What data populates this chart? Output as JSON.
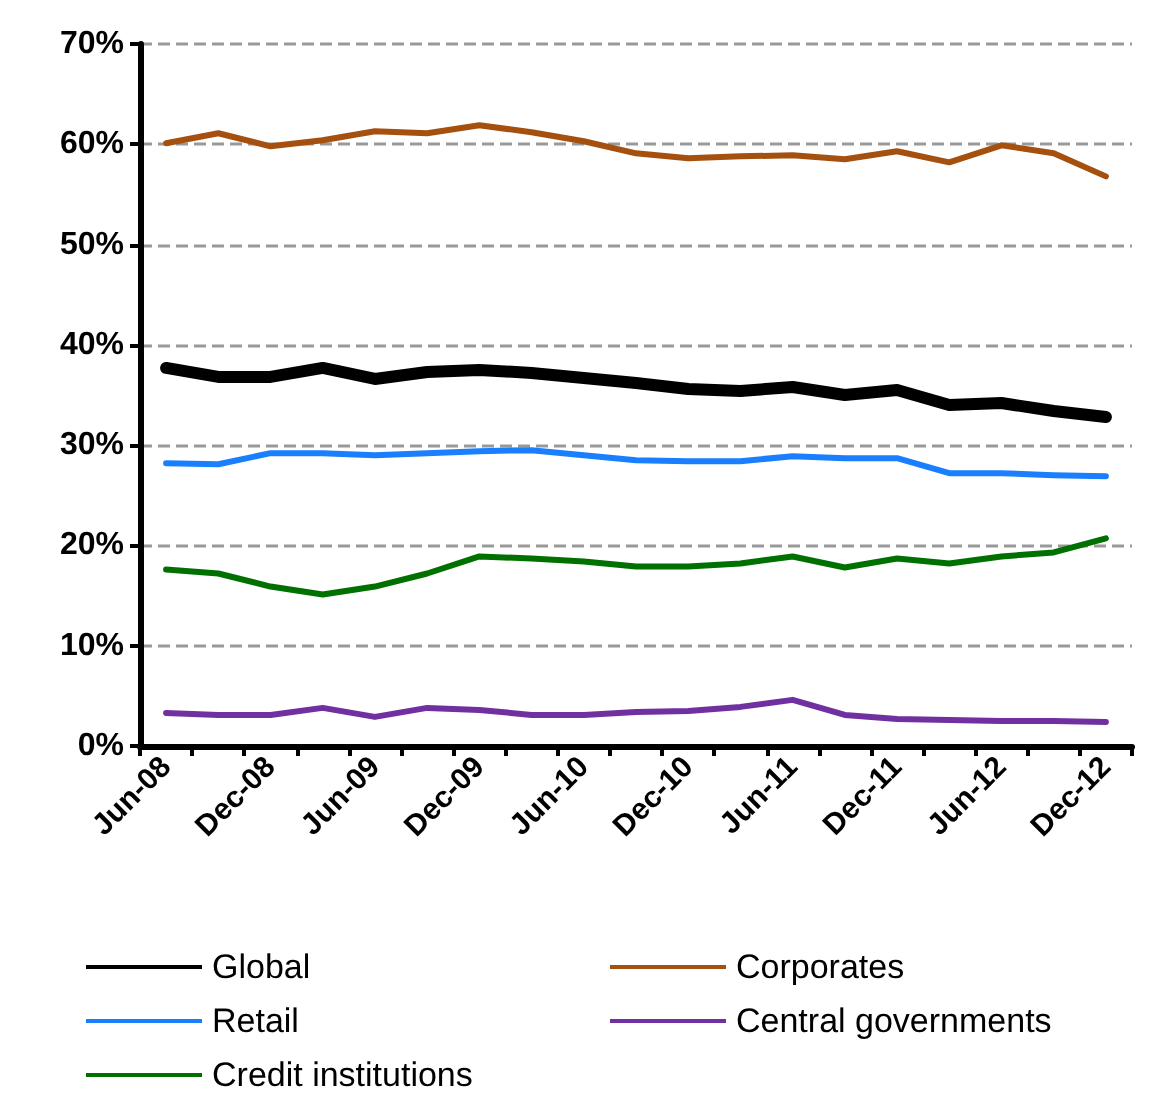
{
  "chart_data": {
    "type": "line",
    "categories": [
      "Jun-08",
      null,
      "Dec-08",
      null,
      "Jun-09",
      null,
      "Dec-09",
      null,
      "Jun-10",
      null,
      "Dec-10",
      null,
      "Jun-11",
      null,
      "Dec-11",
      null,
      "Jun-12",
      null,
      "Dec-12"
    ],
    "series": [
      {
        "name": "Global",
        "color": "#000000",
        "values": [
          37.7,
          36.8,
          36.8,
          37.7,
          36.6,
          37.3,
          37.5,
          37.2,
          36.7,
          36.2,
          35.6,
          35.4,
          35.8,
          35.0,
          35.5,
          34.0,
          34.2,
          33.4,
          32.8
        ]
      },
      {
        "name": "Corporates",
        "color": "#a5500f",
        "values": [
          60.1,
          61.1,
          59.8,
          60.4,
          61.3,
          61.1,
          61.9,
          61.2,
          60.3,
          59.1,
          58.6,
          58.8,
          58.9,
          58.5,
          59.3,
          58.2,
          59.9,
          59.1,
          56.8
        ]
      },
      {
        "name": "Retail",
        "color": "#1a7fff",
        "values": [
          28.2,
          28.1,
          29.2,
          29.2,
          29.0,
          29.2,
          29.4,
          29.5,
          29.0,
          28.5,
          28.4,
          28.4,
          28.9,
          28.7,
          28.7,
          27.2,
          27.2,
          27.0,
          26.9
        ]
      },
      {
        "name": "Central governments",
        "color": "#7030a0",
        "values": [
          3.3,
          3.1,
          3.1,
          3.8,
          2.9,
          3.8,
          3.6,
          3.1,
          3.1,
          3.4,
          3.5,
          3.9,
          4.6,
          3.1,
          2.7,
          2.6,
          2.5,
          2.5,
          2.4
        ]
      },
      {
        "name": "Credit institutions",
        "color": "#007000",
        "values": [
          17.6,
          17.2,
          15.9,
          15.1,
          15.9,
          17.2,
          18.9,
          18.7,
          18.4,
          17.9,
          17.9,
          18.2,
          18.9,
          17.8,
          18.7,
          18.2,
          18.9,
          19.3,
          20.7
        ]
      }
    ],
    "ylim": [
      0,
      70
    ],
    "yticks": [
      {
        "value": 0,
        "label": "0%"
      },
      {
        "value": 10,
        "label": "10%"
      },
      {
        "value": 20,
        "label": "20%"
      },
      {
        "value": 30,
        "label": "30%"
      },
      {
        "value": 40,
        "label": "40%"
      },
      {
        "value": 50,
        "label": "50%"
      },
      {
        "value": 60,
        "label": "60%"
      },
      {
        "value": 70,
        "label": "70%"
      }
    ],
    "grid": "y",
    "legend": "bottom",
    "marker": "none",
    "line_style": "solid"
  }
}
